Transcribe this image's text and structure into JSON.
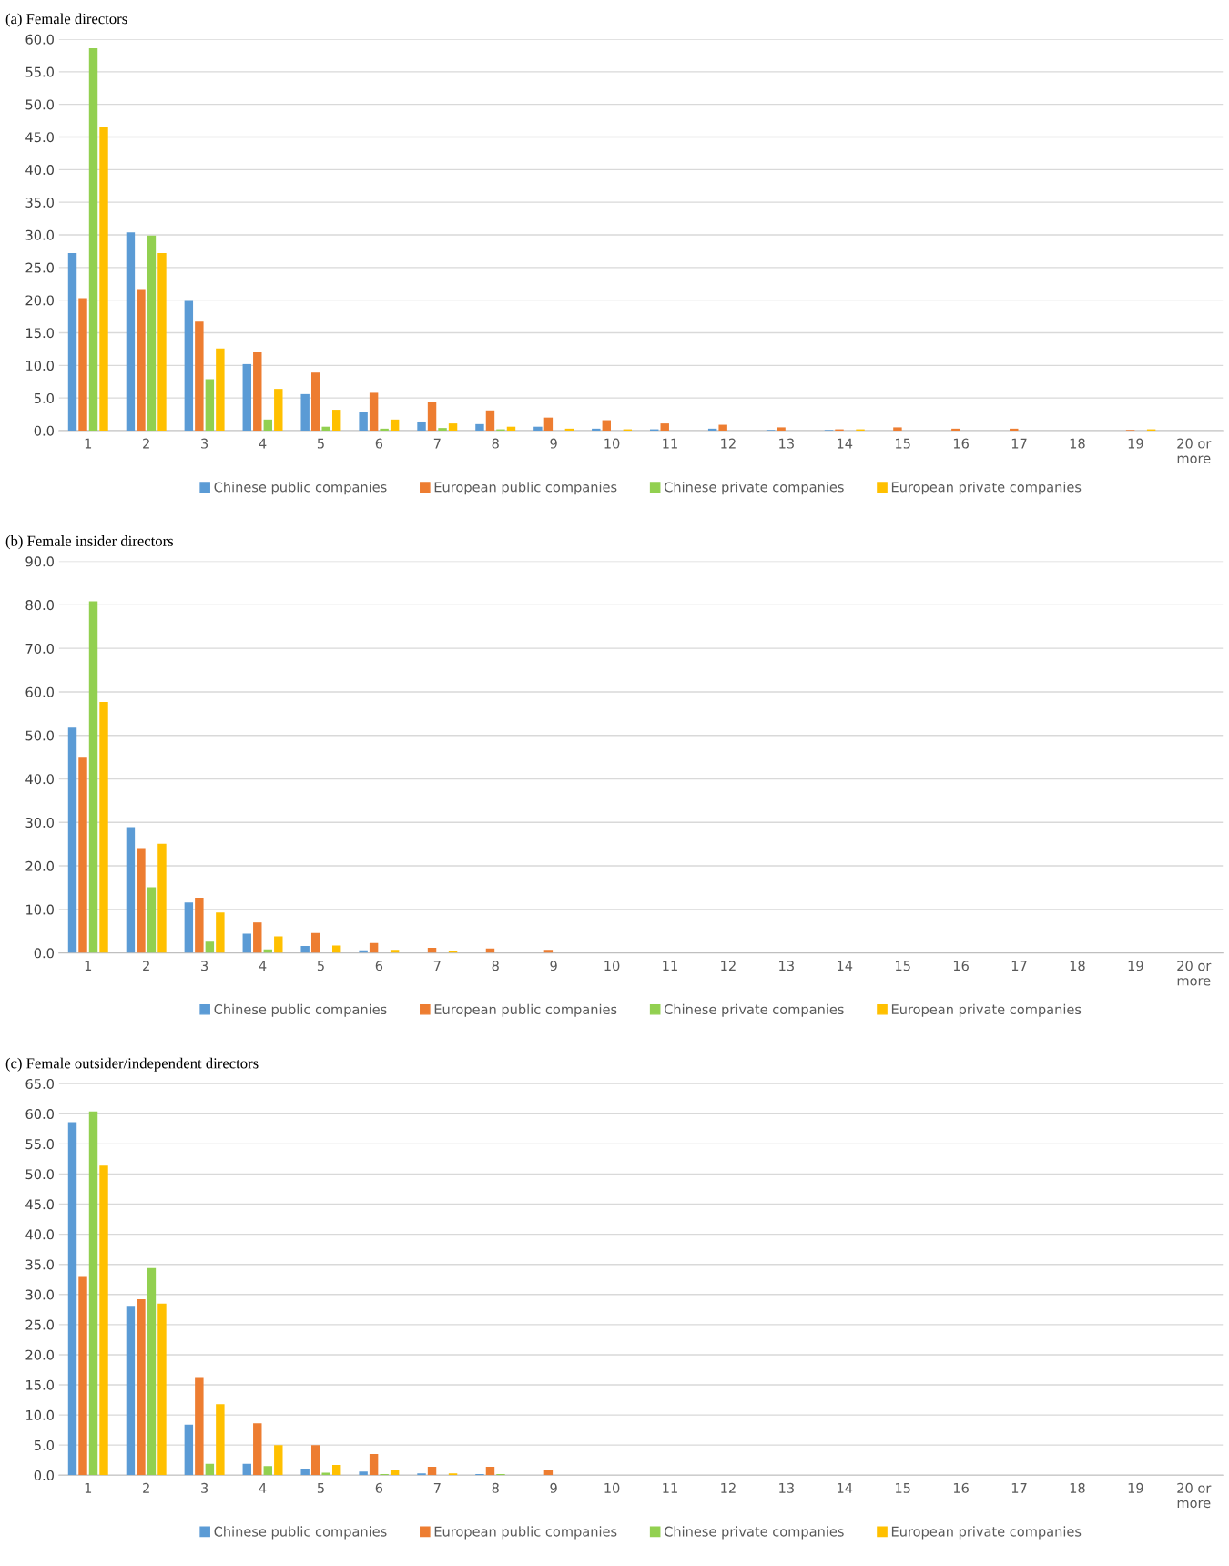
{
  "chart_data": [
    {
      "type": "bar",
      "title": "(a) Female directors",
      "categories": [
        "1",
        "2",
        "3",
        "4",
        "5",
        "6",
        "7",
        "8",
        "9",
        "10",
        "11",
        "12",
        "13",
        "14",
        "15",
        "16",
        "17",
        "18",
        "19",
        "20 or\nmore"
      ],
      "ylim": [
        0,
        60
      ],
      "yticks": [
        {
          "value": 0,
          "label": "0.0"
        },
        {
          "value": 5,
          "label": "5.0"
        },
        {
          "value": 10,
          "label": "10.0"
        },
        {
          "value": 15,
          "label": "15.0"
        },
        {
          "value": 20,
          "label": "20.0"
        },
        {
          "value": 25,
          "label": "25.0"
        },
        {
          "value": 30,
          "label": "30.0"
        },
        {
          "value": 35,
          "label": "35.0"
        },
        {
          "value": 40,
          "label": "40.0"
        },
        {
          "value": 45,
          "label": "45.0"
        },
        {
          "value": 50,
          "label": "50.0"
        },
        {
          "value": 55,
          "label": "55.0"
        },
        {
          "value": 60,
          "label": "60.0"
        }
      ],
      "grid": "y",
      "legend": "bottom",
      "series": [
        {
          "name": "Chinese public companies",
          "color": "#5b9bd5",
          "values": [
            27.2,
            30.4,
            19.9,
            10.2,
            5.6,
            2.8,
            1.4,
            1.0,
            0.6,
            0.3,
            0.2,
            0.3,
            0.1,
            0.1,
            0,
            0,
            0,
            0,
            0,
            0
          ]
        },
        {
          "name": "European public companies",
          "color": "#ed7d31",
          "values": [
            20.3,
            21.7,
            16.7,
            12.0,
            8.9,
            5.8,
            4.4,
            3.1,
            2.0,
            1.6,
            1.1,
            0.9,
            0.5,
            0.2,
            0.5,
            0.3,
            0.3,
            0,
            0.1,
            0
          ]
        },
        {
          "name": "Chinese private companies",
          "color": "#92d050",
          "values": [
            58.6,
            29.9,
            7.9,
            1.7,
            0.6,
            0.3,
            0.4,
            0.2,
            0,
            0,
            0,
            0,
            0,
            0,
            0,
            0,
            0,
            0,
            0,
            0
          ]
        },
        {
          "name": "European private companies",
          "color": "#ffc000",
          "values": [
            46.5,
            27.2,
            12.6,
            6.4,
            3.2,
            1.7,
            1.1,
            0.6,
            0.3,
            0.2,
            0,
            0,
            0,
            0.2,
            0,
            0,
            0,
            0,
            0.2,
            0
          ]
        }
      ]
    },
    {
      "type": "bar",
      "title": "(b) Female insider directors",
      "categories": [
        "1",
        "2",
        "3",
        "4",
        "5",
        "6",
        "7",
        "8",
        "9",
        "10",
        "11",
        "12",
        "13",
        "14",
        "15",
        "16",
        "17",
        "18",
        "19",
        "20 or\nmore"
      ],
      "ylim": [
        0,
        90
      ],
      "yticks": [
        {
          "value": 0,
          "label": "0.0"
        },
        {
          "value": 10,
          "label": "10.0"
        },
        {
          "value": 20,
          "label": "20.0"
        },
        {
          "value": 30,
          "label": "30.0"
        },
        {
          "value": 40,
          "label": "40.0"
        },
        {
          "value": 50,
          "label": "50.0"
        },
        {
          "value": 60,
          "label": "60.0"
        },
        {
          "value": 70,
          "label": "70.0"
        },
        {
          "value": 80,
          "label": "80.0"
        },
        {
          "value": 90,
          "label": "90.0"
        }
      ],
      "grid": "y",
      "legend": "bottom",
      "series": [
        {
          "name": "Chinese public companies",
          "color": "#5b9bd5",
          "values": [
            51.8,
            28.9,
            11.6,
            4.4,
            1.6,
            0.6,
            0,
            0,
            0,
            0,
            0,
            0,
            0,
            0,
            0,
            0,
            0,
            0,
            0,
            0
          ]
        },
        {
          "name": "European public companies",
          "color": "#ed7d31",
          "values": [
            45.1,
            24.1,
            12.7,
            7.0,
            4.6,
            2.3,
            1.2,
            1.0,
            0.7,
            0,
            0,
            0,
            0,
            0,
            0,
            0,
            0,
            0,
            0,
            0
          ]
        },
        {
          "name": "Chinese private companies",
          "color": "#92d050",
          "values": [
            80.8,
            15.1,
            2.6,
            0.8,
            0,
            0,
            0,
            0,
            0,
            0,
            0,
            0,
            0,
            0,
            0,
            0,
            0,
            0,
            0,
            0
          ]
        },
        {
          "name": "European private companies",
          "color": "#ffc000",
          "values": [
            57.7,
            25.1,
            9.3,
            3.8,
            1.7,
            0.7,
            0.5,
            0,
            0,
            0,
            0,
            0,
            0,
            0,
            0,
            0,
            0,
            0,
            0,
            0
          ]
        }
      ]
    },
    {
      "type": "bar",
      "title": "(c) Female outsider/independent directors",
      "categories": [
        "1",
        "2",
        "3",
        "4",
        "5",
        "6",
        "7",
        "8",
        "9",
        "10",
        "11",
        "12",
        "13",
        "14",
        "15",
        "16",
        "17",
        "18",
        "19",
        "20 or\nmore"
      ],
      "ylim": [
        0,
        65
      ],
      "yticks": [
        {
          "value": 0,
          "label": "0.0"
        },
        {
          "value": 5,
          "label": "5.0"
        },
        {
          "value": 10,
          "label": "10.0"
        },
        {
          "value": 15,
          "label": "15.0"
        },
        {
          "value": 20,
          "label": "20.0"
        },
        {
          "value": 25,
          "label": "25.0"
        },
        {
          "value": 30,
          "label": "30.0"
        },
        {
          "value": 35,
          "label": "35.0"
        },
        {
          "value": 40,
          "label": "40.0"
        },
        {
          "value": 45,
          "label": "45.0"
        },
        {
          "value": 50,
          "label": "50.0"
        },
        {
          "value": 55,
          "label": "55.0"
        },
        {
          "value": 60,
          "label": "60.0"
        },
        {
          "value": 65,
          "label": "65.0"
        }
      ],
      "grid": "y",
      "legend": "bottom",
      "series": [
        {
          "name": "Chinese public companies",
          "color": "#5b9bd5",
          "values": [
            58.6,
            28.1,
            8.4,
            1.9,
            1.0,
            0.6,
            0.3,
            0.2,
            0,
            0,
            0,
            0,
            0,
            0,
            0,
            0,
            0,
            0,
            0,
            0
          ]
        },
        {
          "name": "European public companies",
          "color": "#ed7d31",
          "values": [
            32.9,
            29.2,
            16.3,
            8.6,
            5.0,
            3.5,
            1.4,
            1.4,
            0.8,
            0,
            0,
            0,
            0,
            0,
            0,
            0,
            0,
            0,
            0,
            0
          ]
        },
        {
          "name": "Chinese private companies",
          "color": "#92d050",
          "values": [
            60.4,
            34.4,
            1.9,
            1.5,
            0.4,
            0.2,
            0,
            0.2,
            0,
            0,
            0,
            0,
            0,
            0,
            0,
            0,
            0,
            0,
            0,
            0
          ]
        },
        {
          "name": "European private companies",
          "color": "#ffc000",
          "values": [
            51.4,
            28.5,
            11.8,
            5.0,
            1.7,
            0.8,
            0.3,
            0,
            0,
            0,
            0,
            0,
            0,
            0,
            0,
            0,
            0,
            0,
            0,
            0
          ]
        }
      ]
    }
  ]
}
